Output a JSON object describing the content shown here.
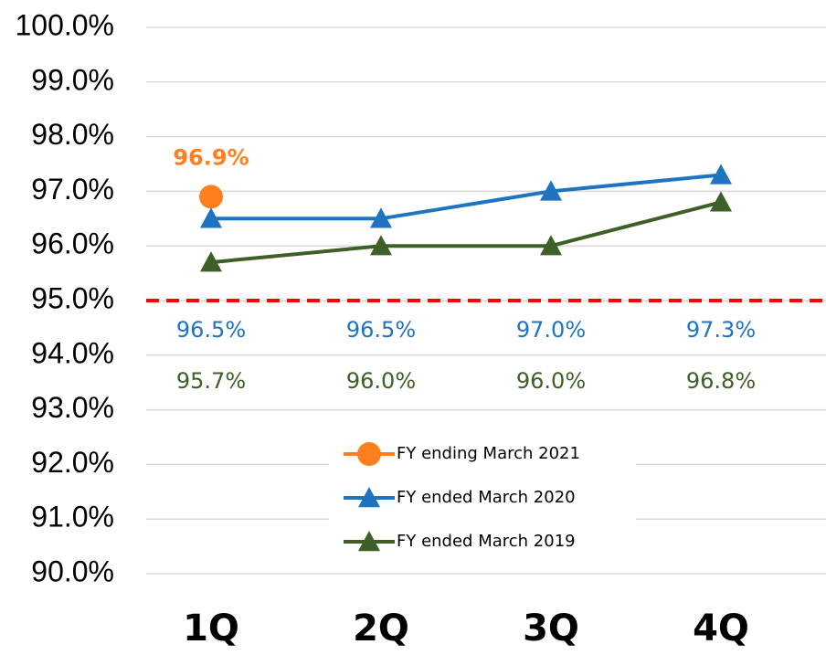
{
  "chart_data": {
    "type": "line",
    "categories": [
      "1Q",
      "2Q",
      "3Q",
      "4Q"
    ],
    "series": [
      {
        "name": "FY ending March 2021",
        "color": "#ff7f1e",
        "marker": "circle",
        "values": [
          96.9,
          null,
          null,
          null
        ],
        "value_labels": [
          "96.9%",
          null,
          null,
          null
        ]
      },
      {
        "name": "FY ended March 2020",
        "color": "#1f74c0",
        "marker": "triangle",
        "values": [
          96.5,
          96.5,
          97.0,
          97.3
        ],
        "value_labels": [
          "96.5%",
          "96.5%",
          "97.0%",
          "97.3%"
        ]
      },
      {
        "name": "FY ended March 2019",
        "color": "#3e5f28",
        "marker": "triangle",
        "values": [
          95.7,
          96.0,
          96.0,
          96.8
        ],
        "value_labels": [
          "95.7%",
          "96.0%",
          "96.0%",
          "96.8%"
        ]
      }
    ],
    "ylim": [
      90,
      100
    ],
    "yticks": [
      {
        "value": 90,
        "label": "90.0%"
      },
      {
        "value": 91,
        "label": "91.0%"
      },
      {
        "value": 92,
        "label": "92.0%"
      },
      {
        "value": 93,
        "label": "93.0%"
      },
      {
        "value": 94,
        "label": "94.0%"
      },
      {
        "value": 95,
        "label": "95.0%"
      },
      {
        "value": 96,
        "label": "96.0%"
      },
      {
        "value": 97,
        "label": "97.0%"
      },
      {
        "value": 98,
        "label": "98.0%"
      },
      {
        "value": 99,
        "label": "99.0%"
      },
      {
        "value": 100,
        "label": "100.0%"
      }
    ],
    "grid": true,
    "reference_line": {
      "value": 95,
      "color": "#ff0000",
      "style": "dashed"
    },
    "legend": "bottom-center"
  }
}
